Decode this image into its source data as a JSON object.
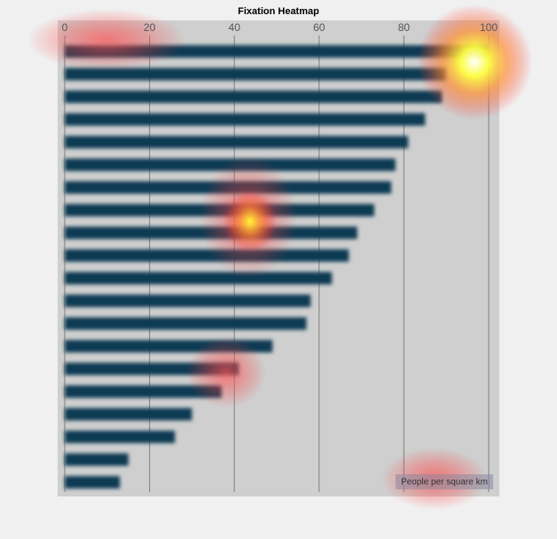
{
  "chart_data": {
    "type": "bar",
    "orientation": "horizontal",
    "title": "Fixation Heatmap",
    "x_label": "People per square km",
    "values": [
      100,
      90,
      89,
      85,
      81,
      78,
      77,
      73,
      69,
      67,
      63,
      58,
      57,
      49,
      41,
      37,
      30,
      26,
      15,
      13
    ],
    "color": "#0e3b52",
    "xlim": [
      0,
      100
    ],
    "xticks": [
      0,
      20,
      40,
      60,
      80,
      100
    ],
    "grid": true
  }
}
